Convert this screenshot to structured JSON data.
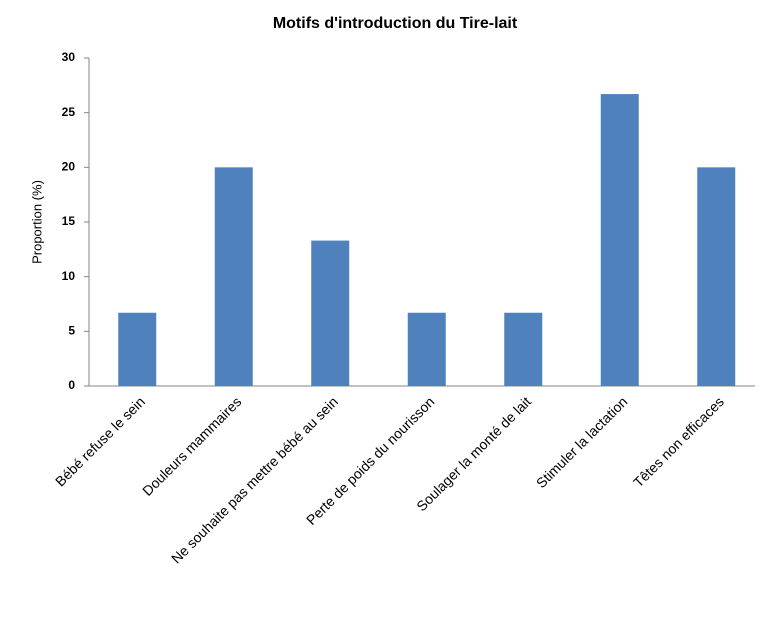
{
  "chart_data": {
    "type": "bar",
    "title": "Motifs d'introduction du Tire-lait",
    "y_label": "Proportion  (%)",
    "categories": [
      "Bébé refuse le sein",
      "Douleurs mammaires",
      "Ne souhaite pas mettre bébé au sein",
      "Perte de poids du nourisson",
      "Soulager la monté de lait",
      "Stimuler la lactation",
      "Têtes non efficaces"
    ],
    "values": [
      6.7,
      20,
      13.3,
      6.7,
      6.7,
      26.7,
      20
    ],
    "color": "#4f81bd",
    "ylim": [
      0,
      30
    ],
    "yticks": [
      0,
      5,
      10,
      15,
      20,
      25,
      30
    ],
    "grid": false
  }
}
